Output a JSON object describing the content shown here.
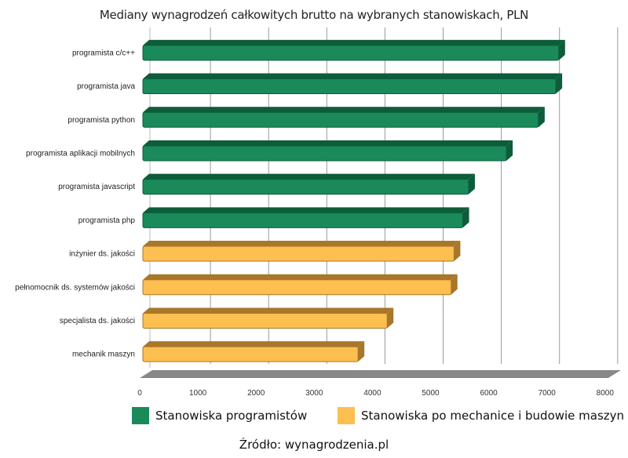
{
  "chart_data": {
    "type": "bar",
    "orientation": "horizontal",
    "style": "3d",
    "title": "Mediany wynagrodzeń całkowitych brutto na wybranych stanowiskach, PLN",
    "categories": [
      "programista c/c++",
      "programista java",
      "programista python",
      "programista aplikacji mobilnych",
      "programista javascript",
      "programista php",
      "inżynier ds. jakości",
      "pełnomocnik ds. systemów jakości",
      "specjalista ds. jakości",
      "mechanik maszyn"
    ],
    "values": [
      7150,
      7100,
      6800,
      6250,
      5600,
      5500,
      5350,
      5300,
      4200,
      3700
    ],
    "groups": [
      0,
      0,
      0,
      0,
      0,
      0,
      1,
      1,
      1,
      1
    ],
    "series": [
      {
        "name": "Stanowiska programistów",
        "color": "#1a8a5a"
      },
      {
        "name": "Stanowiska po mechanice i budowie maszyn",
        "color": "#fdbf50"
      }
    ],
    "xlim": [
      0,
      8000
    ],
    "xticks": [
      "0",
      "1000",
      "2000",
      "3000",
      "4000",
      "5000",
      "6000",
      "7000",
      "8000"
    ],
    "grid": true,
    "legend_position": "bottom"
  },
  "source": "Źródło: wynagrodzenia.pl"
}
